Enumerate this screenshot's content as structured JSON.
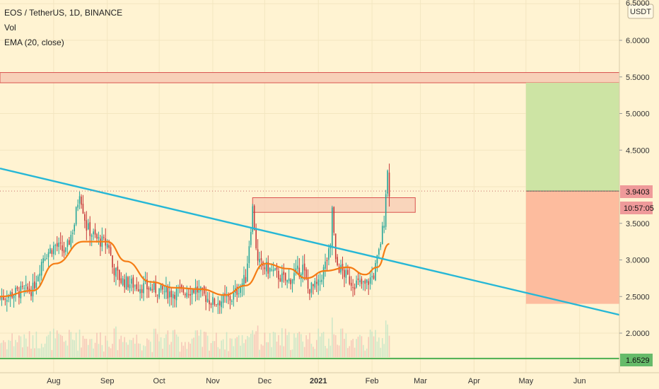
{
  "header": {
    "symbol_line": "EOS / TetherUS, 1D, BINANCE",
    "volume_label": "Vol",
    "ema_label": "EMA (20, close)"
  },
  "price_axis": {
    "currency_badge": "USDT",
    "ticks": [
      "6.0000",
      "5.5000",
      "5.0000",
      "4.5000",
      "3.5000",
      "3.0000",
      "2.5000",
      "2.0000"
    ],
    "top_partial": "6.5000"
  },
  "tags": {
    "current_price": "3.9403",
    "countdown": "10:57:05",
    "support_level": "1.6529"
  },
  "time_axis": {
    "labels": [
      "Aug",
      "Sep",
      "Oct",
      "Nov",
      "Dec",
      "2021",
      "Feb",
      "Mar",
      "Apr",
      "May",
      "Jun"
    ]
  },
  "colors": {
    "background": "#fff3d2",
    "trendline": "#26b7d6",
    "ema": "#f57c14",
    "candle_up": "#26a69a",
    "candle_down": "#c73a3a",
    "support": "#4caf50",
    "profit_zone": "#cde4a4",
    "loss_zone": "#fdbc9e",
    "resistance_box": "#f8d0b8"
  },
  "chart_data": {
    "type": "candlestick",
    "title": "EOS / TetherUS, 1D, BINANCE",
    "y_range": [
      1.45,
      6.6
    ],
    "x_range": [
      "2020-07-01",
      "2021-06-24"
    ],
    "current_price": 3.9403,
    "support_level": 1.6529,
    "resistance_zone": [
      5.42,
      5.56
    ],
    "breakout_box": {
      "x": [
        "2020-11-24",
        "2021-02-26"
      ],
      "y": [
        3.65,
        3.85
      ]
    },
    "position": {
      "x": [
        "2021-05-01",
        "2021-06-24"
      ],
      "entry": 3.9403,
      "target": 5.42,
      "stop": 2.4
    },
    "trendline": {
      "from": [
        "2020-07-01",
        4.25
      ],
      "to": [
        "2021-06-24",
        2.25
      ]
    },
    "candles_path": [
      [
        "2020-07-01",
        2.48
      ],
      [
        "2020-07-10",
        2.55
      ],
      [
        "2020-07-20",
        2.6
      ],
      [
        "2020-07-26",
        3.05
      ],
      [
        "2020-08-02",
        3.2
      ],
      [
        "2020-08-08",
        3.1
      ],
      [
        "2020-08-13",
        3.5
      ],
      [
        "2020-08-16",
        3.95
      ],
      [
        "2020-08-20",
        3.45
      ],
      [
        "2020-08-26",
        3.28
      ],
      [
        "2020-09-02",
        3.2
      ],
      [
        "2020-09-04",
        2.9
      ],
      [
        "2020-09-09",
        2.72
      ],
      [
        "2020-09-18",
        2.65
      ],
      [
        "2020-09-28",
        2.6
      ],
      [
        "2020-10-08",
        2.55
      ],
      [
        "2020-10-22",
        2.6
      ],
      [
        "2020-11-01",
        2.42
      ],
      [
        "2020-11-12",
        2.48
      ],
      [
        "2020-11-20",
        2.75
      ],
      [
        "2020-11-24",
        3.7
      ],
      [
        "2020-11-27",
        2.95
      ],
      [
        "2020-12-05",
        2.85
      ],
      [
        "2020-12-14",
        2.7
      ],
      [
        "2020-12-23",
        2.9
      ],
      [
        "2020-12-26",
        2.6
      ],
      [
        "2021-01-01",
        2.65
      ],
      [
        "2021-01-08",
        3.15
      ],
      [
        "2021-01-09",
        3.72
      ],
      [
        "2021-01-11",
        2.95
      ],
      [
        "2021-01-20",
        2.7
      ],
      [
        "2021-01-28",
        2.65
      ],
      [
        "2021-02-02",
        2.8
      ],
      [
        "2021-02-05",
        3.1
      ],
      [
        "2021-02-08",
        3.55
      ],
      [
        "2021-02-09",
        3.95
      ],
      [
        "2021-02-10",
        4.2
      ],
      [
        "2021-02-11",
        3.9403
      ]
    ],
    "ema_path": [
      [
        "2020-07-01",
        2.5
      ],
      [
        "2020-07-20",
        2.58
      ],
      [
        "2020-08-02",
        2.95
      ],
      [
        "2020-08-18",
        3.25
      ],
      [
        "2020-09-01",
        3.25
      ],
      [
        "2020-09-12",
        2.98
      ],
      [
        "2020-09-26",
        2.7
      ],
      [
        "2020-10-10",
        2.62
      ],
      [
        "2020-10-25",
        2.6
      ],
      [
        "2020-11-08",
        2.52
      ],
      [
        "2020-11-20",
        2.65
      ],
      [
        "2020-12-01",
        2.95
      ],
      [
        "2020-12-15",
        2.88
      ],
      [
        "2020-12-25",
        2.75
      ],
      [
        "2021-01-05",
        2.85
      ],
      [
        "2021-01-18",
        2.9
      ],
      [
        "2021-01-28",
        2.8
      ],
      [
        "2021-02-04",
        2.9
      ],
      [
        "2021-02-11",
        3.22
      ]
    ]
  }
}
